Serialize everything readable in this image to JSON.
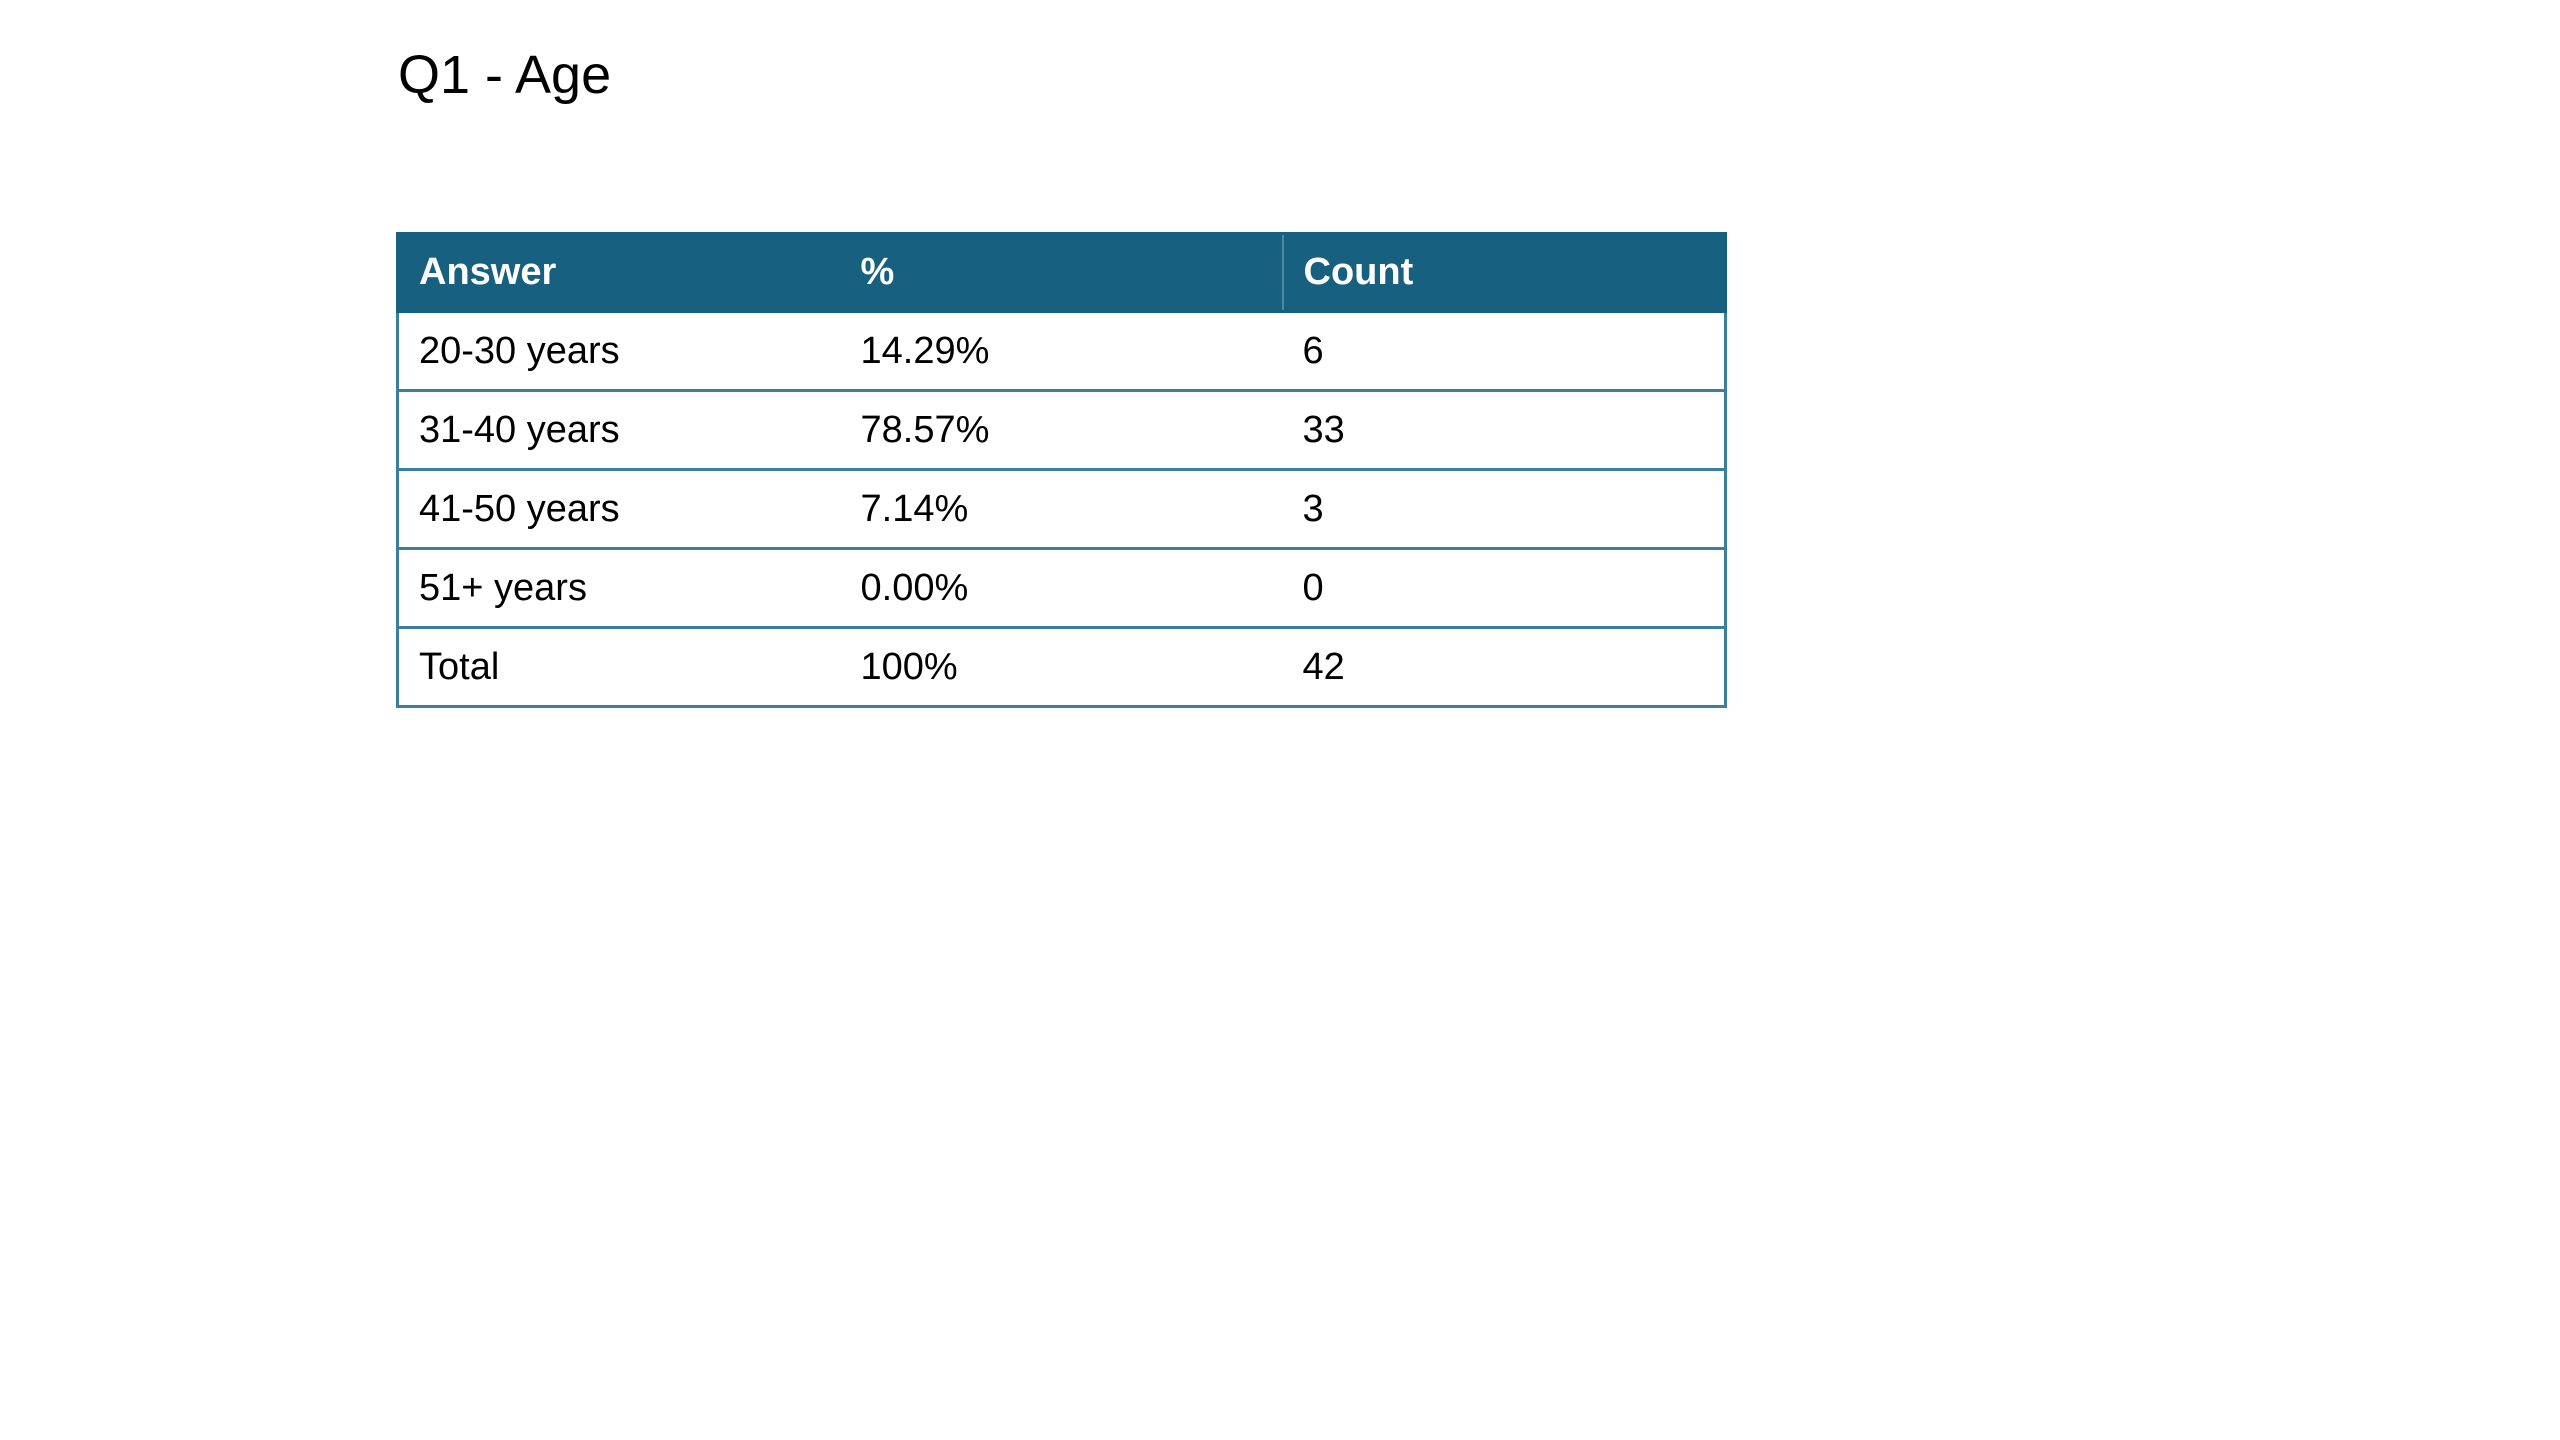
{
  "page": {
    "title": "Q1 - Age"
  },
  "table": {
    "headers": {
      "answer": "Answer",
      "percent": "%",
      "count": "Count"
    },
    "rows": [
      {
        "answer": "20-30 years",
        "percent": "14.29%",
        "count": "6"
      },
      {
        "answer": "31-40 years",
        "percent": "78.57%",
        "count": "33"
      },
      {
        "answer": "41-50 years",
        "percent": "7.14%",
        "count": "3"
      },
      {
        "answer": "51+ years",
        "percent": "0.00%",
        "count": "0"
      },
      {
        "answer": "Total",
        "percent": "100%",
        "count": "42"
      }
    ]
  },
  "colors": {
    "header_background": "#17607f",
    "header_text": "#ffffff",
    "row_border": "#3b7f9c"
  }
}
